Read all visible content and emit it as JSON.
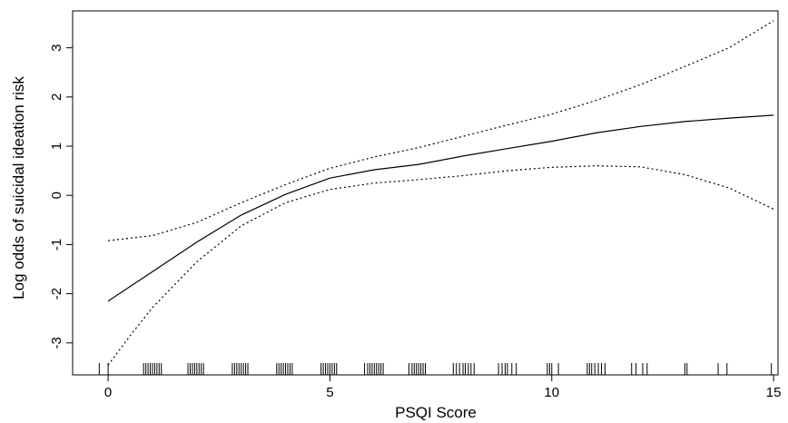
{
  "chart_data": {
    "type": "line",
    "title": "",
    "xlabel": "PSQI Score",
    "ylabel": "Log odds of suicidal ideation risk",
    "xlim": [
      -0.8,
      15.1
    ],
    "ylim": [
      -3.65,
      3.75
    ],
    "x_ticks": [
      0,
      5,
      10,
      15
    ],
    "y_ticks": [
      -3,
      -2,
      -1,
      0,
      1,
      2,
      3
    ],
    "grid": false,
    "series": [
      {
        "role": "fit",
        "style": "solid",
        "x": [
          0,
          1,
          2,
          3,
          4,
          5,
          6,
          7,
          8,
          9,
          10,
          11,
          12,
          13,
          14,
          15
        ],
        "y": [
          -2.15,
          -1.55,
          -0.95,
          -0.4,
          0.02,
          0.35,
          0.52,
          0.63,
          0.8,
          0.95,
          1.1,
          1.27,
          1.4,
          1.5,
          1.57,
          1.63
        ]
      },
      {
        "role": "upper_ci",
        "style": "dotted",
        "x": [
          0,
          1,
          2,
          3,
          4,
          5,
          6,
          7,
          8,
          9,
          10,
          11,
          12,
          13,
          14,
          15
        ],
        "y": [
          -0.92,
          -0.82,
          -0.55,
          -0.15,
          0.22,
          0.55,
          0.78,
          0.97,
          1.2,
          1.43,
          1.65,
          1.93,
          2.25,
          2.62,
          3.0,
          3.55
        ]
      },
      {
        "role": "lower_ci",
        "style": "dotted",
        "x": [
          0,
          0.5,
          1,
          2,
          3,
          4,
          5,
          6,
          7,
          8,
          9,
          10,
          11,
          12,
          13,
          14,
          15
        ],
        "y": [
          -3.45,
          -2.85,
          -2.28,
          -1.35,
          -0.62,
          -0.15,
          0.12,
          0.25,
          0.32,
          0.4,
          0.5,
          0.57,
          0.6,
          0.58,
          0.42,
          0.15,
          -0.28
        ]
      }
    ],
    "rug_x": [
      -0.2,
      0,
      0.8,
      0.85,
      0.9,
      0.95,
      1.0,
      1.05,
      1.1,
      1.15,
      1.2,
      1.8,
      1.85,
      1.9,
      1.95,
      2.0,
      2.05,
      2.1,
      2.15,
      2.8,
      2.85,
      2.9,
      2.95,
      3.0,
      3.05,
      3.1,
      3.15,
      3.8,
      3.85,
      3.9,
      3.95,
      4.0,
      4.05,
      4.1,
      4.15,
      4.8,
      4.85,
      4.9,
      4.95,
      5.0,
      5.05,
      5.1,
      5.15,
      5.78,
      5.85,
      5.9,
      5.95,
      6.0,
      6.05,
      6.1,
      6.15,
      6.2,
      6.78,
      6.85,
      6.9,
      6.95,
      7.0,
      7.05,
      7.1,
      7.15,
      7.78,
      7.85,
      7.92,
      8.0,
      8.05,
      8.12,
      8.18,
      8.25,
      8.8,
      8.88,
      8.95,
      9.0,
      9.1,
      9.2,
      9.9,
      9.95,
      10.0,
      10.15,
      10.8,
      10.85,
      10.9,
      10.97,
      11.05,
      11.12,
      11.2,
      11.8,
      11.9,
      12.05,
      12.15,
      13.0,
      13.05,
      13.75,
      13.95,
      14.95
    ]
  }
}
